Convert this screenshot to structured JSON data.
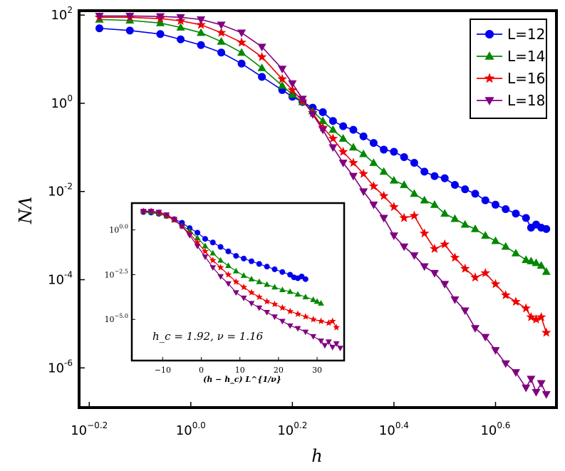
{
  "chart_data": [
    {
      "type": "line",
      "panel": "main",
      "xscale": "log",
      "yscale": "log",
      "xlabel": "h",
      "ylabel": "NΛ",
      "xlim_log10": [
        -0.22,
        0.72
      ],
      "ylim_log10": [
        -6.9,
        2.1
      ],
      "xticks": [
        {
          "base": "10",
          "exp": "−0.2",
          "value_log10": -0.2
        },
        {
          "base": "10",
          "exp": "0.0",
          "value_log10": 0.0
        },
        {
          "base": "10",
          "exp": "0.2",
          "value_log10": 0.2
        },
        {
          "base": "10",
          "exp": "0.4",
          "value_log10": 0.4
        },
        {
          "base": "10",
          "exp": "0.6",
          "value_log10": 0.6
        }
      ],
      "yticks": [
        {
          "base": "10",
          "exp": "2",
          "value_log10": 2
        },
        {
          "base": "10",
          "exp": "0",
          "value_log10": 0
        },
        {
          "base": "10",
          "exp": "-2",
          "value_log10": -2
        },
        {
          "base": "10",
          "exp": "-4",
          "value_log10": -4
        },
        {
          "base": "10",
          "exp": "-6",
          "value_log10": -6
        }
      ],
      "legend_position": "top-right",
      "series": [
        {
          "name": "L=12",
          "color": "#0000ee",
          "marker": "circle",
          "log10x": [
            -0.18,
            -0.12,
            -0.06,
            -0.02,
            0.02,
            0.06,
            0.1,
            0.14,
            0.18,
            0.2,
            0.22,
            0.24,
            0.26,
            0.28,
            0.3,
            0.32,
            0.34,
            0.36,
            0.38,
            0.4,
            0.42,
            0.44,
            0.46,
            0.48,
            0.5,
            0.52,
            0.54,
            0.56,
            0.58,
            0.6,
            0.62,
            0.64,
            0.66,
            0.67,
            0.68,
            0.69,
            0.7
          ],
          "log10y": [
            1.7,
            1.65,
            1.57,
            1.45,
            1.32,
            1.15,
            0.9,
            0.6,
            0.3,
            0.15,
            0.03,
            -0.1,
            -0.2,
            -0.4,
            -0.52,
            -0.6,
            -0.75,
            -0.9,
            -1.05,
            -1.1,
            -1.22,
            -1.35,
            -1.55,
            -1.65,
            -1.7,
            -1.85,
            -1.95,
            -2.05,
            -2.2,
            -2.3,
            -2.4,
            -2.5,
            -2.6,
            -2.82,
            -2.75,
            -2.82,
            -2.85
          ]
        },
        {
          "name": "L=14",
          "color": "#008800",
          "marker": "triangle-up",
          "log10y": [
            1.9,
            1.88,
            1.82,
            1.72,
            1.6,
            1.4,
            1.15,
            0.8,
            0.4,
            0.2,
            0.03,
            -0.18,
            -0.4,
            -0.6,
            -0.8,
            -1.0,
            -1.15,
            -1.35,
            -1.55,
            -1.75,
            -1.85,
            -2.05,
            -2.2,
            -2.3,
            -2.5,
            -2.62,
            -2.75,
            -2.85,
            -3.0,
            -3.12,
            -3.25,
            -3.4,
            -3.55,
            -3.58,
            -3.62,
            -3.68,
            -3.82
          ],
          "log10x": [
            -0.18,
            -0.12,
            -0.06,
            -0.02,
            0.02,
            0.06,
            0.1,
            0.14,
            0.18,
            0.2,
            0.22,
            0.24,
            0.26,
            0.28,
            0.3,
            0.32,
            0.34,
            0.36,
            0.38,
            0.4,
            0.42,
            0.44,
            0.46,
            0.48,
            0.5,
            0.52,
            0.54,
            0.56,
            0.58,
            0.6,
            0.62,
            0.64,
            0.66,
            0.67,
            0.68,
            0.69,
            0.7
          ]
        },
        {
          "name": "L=16",
          "color": "#ee0000",
          "marker": "star",
          "log10x": [
            -0.18,
            -0.12,
            -0.06,
            -0.02,
            0.02,
            0.06,
            0.1,
            0.14,
            0.18,
            0.2,
            0.22,
            0.24,
            0.26,
            0.28,
            0.3,
            0.32,
            0.34,
            0.36,
            0.38,
            0.4,
            0.42,
            0.44,
            0.46,
            0.48,
            0.5,
            0.52,
            0.54,
            0.56,
            0.58,
            0.6,
            0.62,
            0.64,
            0.66,
            0.67,
            0.68,
            0.69,
            0.7
          ],
          "log10y": [
            1.95,
            1.95,
            1.92,
            1.87,
            1.78,
            1.6,
            1.38,
            1.05,
            0.55,
            0.3,
            0.05,
            -0.22,
            -0.55,
            -0.8,
            -1.1,
            -1.35,
            -1.6,
            -1.88,
            -2.1,
            -2.35,
            -2.6,
            -2.55,
            -2.95,
            -3.3,
            -3.2,
            -3.5,
            -3.75,
            -3.95,
            -3.85,
            -4.1,
            -4.35,
            -4.5,
            -4.65,
            -4.85,
            -4.9,
            -4.85,
            -5.2
          ]
        },
        {
          "name": "L=18",
          "color": "#800080",
          "marker": "triangle-down",
          "log10x": [
            -0.18,
            -0.12,
            -0.06,
            -0.02,
            0.02,
            0.06,
            0.1,
            0.14,
            0.18,
            0.2,
            0.22,
            0.24,
            0.26,
            0.28,
            0.3,
            0.32,
            0.34,
            0.36,
            0.38,
            0.4,
            0.42,
            0.44,
            0.46,
            0.48,
            0.5,
            0.52,
            0.54,
            0.56,
            0.58,
            0.6,
            0.62,
            0.64,
            0.66,
            0.67,
            0.68,
            0.69,
            0.7
          ],
          "log10y": [
            1.98,
            1.98,
            1.97,
            1.95,
            1.9,
            1.78,
            1.6,
            1.28,
            0.78,
            0.45,
            0.1,
            -0.25,
            -0.6,
            -1.0,
            -1.35,
            -1.65,
            -2.0,
            -2.3,
            -2.6,
            -3.0,
            -3.25,
            -3.45,
            -3.7,
            -3.85,
            -4.1,
            -4.45,
            -4.7,
            -5.1,
            -5.3,
            -5.6,
            -5.9,
            -6.1,
            -6.45,
            -6.25,
            -6.55,
            -6.35,
            -6.6
          ]
        }
      ]
    },
    {
      "type": "line",
      "panel": "inset",
      "xlabel": "(h − h_c) L^{1/ν}",
      "xlim": [
        -18,
        37
      ],
      "ylim": [
        -7.3,
        1.5
      ],
      "xticks": [
        -10,
        0,
        10,
        20,
        30
      ],
      "yticks": [
        {
          "base": "10",
          "exp": "0.0",
          "value": 0.0
        },
        {
          "base": "10",
          "exp": "−2.5",
          "value": -2.5
        },
        {
          "base": "10",
          "exp": "−5.0",
          "value": -5.0
        }
      ],
      "annotation": "h_c = 1.92, ν = 1.16",
      "series": [
        {
          "name": "L=12",
          "color": "#0000ee",
          "marker": "circle",
          "x": [
            -15,
            -13,
            -11,
            -9,
            -7,
            -5,
            -3,
            -1,
            1,
            3,
            5,
            7,
            9,
            11,
            13,
            15,
            17,
            19,
            21,
            23,
            24,
            25,
            26,
            27
          ],
          "y": [
            1.0,
            0.97,
            0.9,
            0.78,
            0.6,
            0.4,
            0.1,
            -0.15,
            -0.5,
            -0.7,
            -0.95,
            -1.2,
            -1.45,
            -1.6,
            -1.75,
            -1.9,
            -2.05,
            -2.2,
            -2.35,
            -2.5,
            -2.65,
            -2.7,
            -2.6,
            -2.75
          ]
        },
        {
          "name": "L=14",
          "color": "#008800",
          "marker": "triangle-up",
          "x": [
            -15,
            -13,
            -11,
            -9,
            -7,
            -5,
            -3,
            -1,
            1,
            3,
            5,
            7,
            9,
            11,
            13,
            15,
            17,
            19,
            21,
            23,
            25,
            27,
            29,
            30,
            31
          ],
          "y": [
            1.05,
            1.0,
            0.92,
            0.78,
            0.55,
            0.25,
            -0.05,
            -0.45,
            -0.9,
            -1.3,
            -1.7,
            -2.0,
            -2.3,
            -2.55,
            -2.75,
            -2.9,
            -3.05,
            -3.2,
            -3.35,
            -3.45,
            -3.6,
            -3.75,
            -3.9,
            -4.0,
            -4.1
          ]
        },
        {
          "name": "L=16",
          "color": "#ee0000",
          "marker": "star",
          "x": [
            -15,
            -13,
            -11,
            -9,
            -7,
            -5,
            -3,
            -1,
            1,
            3,
            5,
            7,
            9,
            11,
            13,
            15,
            17,
            19,
            21,
            23,
            25,
            27,
            29,
            31,
            33,
            34,
            35
          ],
          "y": [
            1.05,
            1.05,
            0.95,
            0.8,
            0.55,
            0.2,
            -0.2,
            -0.7,
            -1.2,
            -1.7,
            -2.1,
            -2.5,
            -2.9,
            -3.2,
            -3.5,
            -3.75,
            -4.0,
            -4.15,
            -4.35,
            -4.55,
            -4.7,
            -4.85,
            -5.0,
            -5.1,
            -5.2,
            -5.1,
            -5.45
          ]
        },
        {
          "name": "L=18",
          "color": "#800080",
          "marker": "triangle-down",
          "x": [
            -15,
            -13,
            -11,
            -9,
            -7,
            -5,
            -3,
            -1,
            1,
            3,
            5,
            7,
            9,
            11,
            13,
            15,
            17,
            19,
            21,
            23,
            25,
            27,
            29,
            31,
            32,
            33,
            34,
            35,
            36
          ],
          "y": [
            1.05,
            1.05,
            1.0,
            0.85,
            0.6,
            0.2,
            -0.3,
            -0.9,
            -1.5,
            -2.1,
            -2.6,
            -3.0,
            -3.5,
            -3.8,
            -4.1,
            -4.35,
            -4.6,
            -4.85,
            -5.1,
            -5.35,
            -5.5,
            -5.7,
            -5.95,
            -6.2,
            -6.45,
            -6.25,
            -6.55,
            -6.35,
            -6.6
          ]
        }
      ]
    }
  ]
}
